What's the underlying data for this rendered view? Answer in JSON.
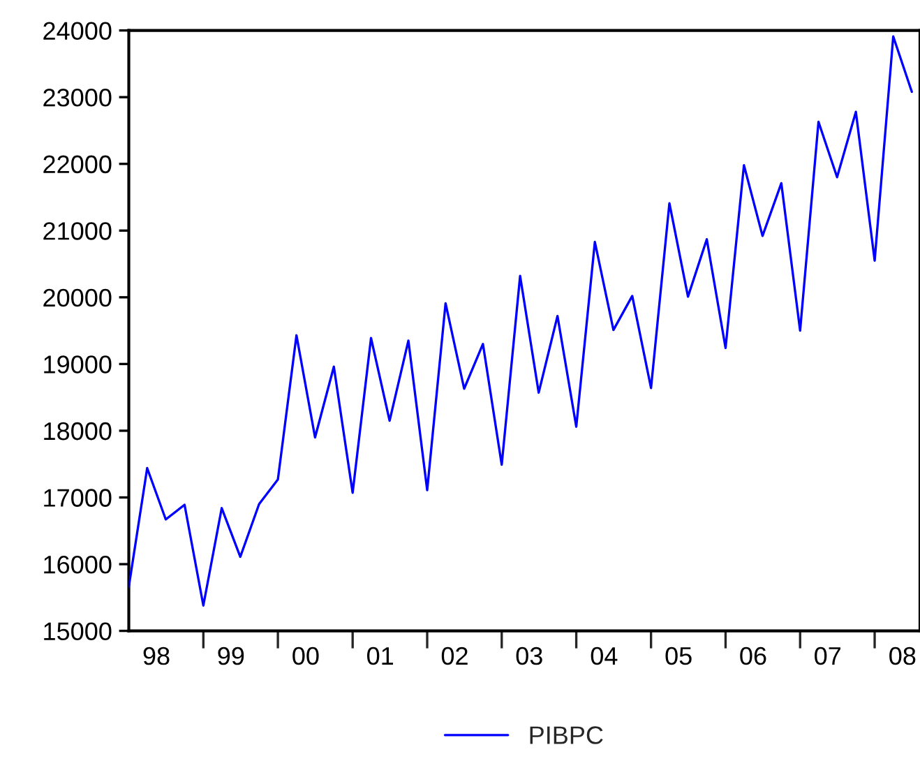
{
  "chart_data": {
    "type": "line",
    "x": [
      "1998-01",
      "1998-04",
      "1998-07",
      "1998-10",
      "1999-01",
      "1999-04",
      "1999-07",
      "1999-10",
      "2000-01",
      "2000-04",
      "2000-07",
      "2000-10",
      "2001-01",
      "2001-04",
      "2001-07",
      "2001-10",
      "2002-01",
      "2002-04",
      "2002-07",
      "2002-10",
      "2003-01",
      "2003-04",
      "2003-07",
      "2003-10",
      "2004-01",
      "2004-04",
      "2004-07",
      "2004-10",
      "2005-01",
      "2005-04",
      "2005-07",
      "2005-10",
      "2006-01",
      "2006-04",
      "2006-07",
      "2006-10",
      "2007-01",
      "2007-04",
      "2007-07",
      "2007-10",
      "2008-01",
      "2008-04",
      "2008-07"
    ],
    "series": [
      {
        "name": "PIBPC",
        "color": "#0000ff",
        "values": [
          15660,
          17440,
          16670,
          16890,
          15380,
          16840,
          16110,
          16900,
          17270,
          19430,
          17900,
          18960,
          17070,
          19390,
          18150,
          19350,
          17110,
          19910,
          18630,
          19300,
          17490,
          20320,
          18570,
          19720,
          18060,
          20830,
          19510,
          20020,
          18640,
          21410,
          20010,
          20870,
          19240,
          21980,
          20920,
          21710,
          19500,
          22630,
          21800,
          22780,
          20550,
          23910,
          23080
        ]
      }
    ],
    "xlim": [
      "1998-01-01",
      "2008-08-10"
    ],
    "xticks": [
      {
        "value": "1998-05-16",
        "label": "98"
      },
      {
        "value": "1999-05-16",
        "label": "99"
      },
      {
        "value": "2000-05-16",
        "label": "00"
      },
      {
        "value": "2001-05-16",
        "label": "01"
      },
      {
        "value": "2002-05-16",
        "label": "02"
      },
      {
        "value": "2003-05-16",
        "label": "03"
      },
      {
        "value": "2004-05-16",
        "label": "04"
      },
      {
        "value": "2005-05-16",
        "label": "05"
      },
      {
        "value": "2006-05-16",
        "label": "06"
      },
      {
        "value": "2007-05-16",
        "label": "07"
      },
      {
        "value": "2008-05-16",
        "label": "08"
      },
      {
        "value": "1999",
        "label": null
      },
      {
        "value": "2000",
        "label": null
      },
      {
        "value": "2001",
        "label": null
      },
      {
        "value": "2002",
        "label": null
      },
      {
        "value": "2003",
        "label": null
      },
      {
        "value": "2004",
        "label": null
      },
      {
        "value": "2005",
        "label": null
      },
      {
        "value": "2006",
        "label": null
      },
      {
        "value": "2007",
        "label": null
      },
      {
        "value": "2008",
        "label": null
      }
    ],
    "ylim": [
      15000,
      24000
    ],
    "yticks": [
      15000,
      16000,
      17000,
      18000,
      19000,
      20000,
      21000,
      22000,
      23000,
      24000
    ],
    "grid": false,
    "legend": "bottom",
    "marker": "none",
    "line_style": "solid"
  }
}
